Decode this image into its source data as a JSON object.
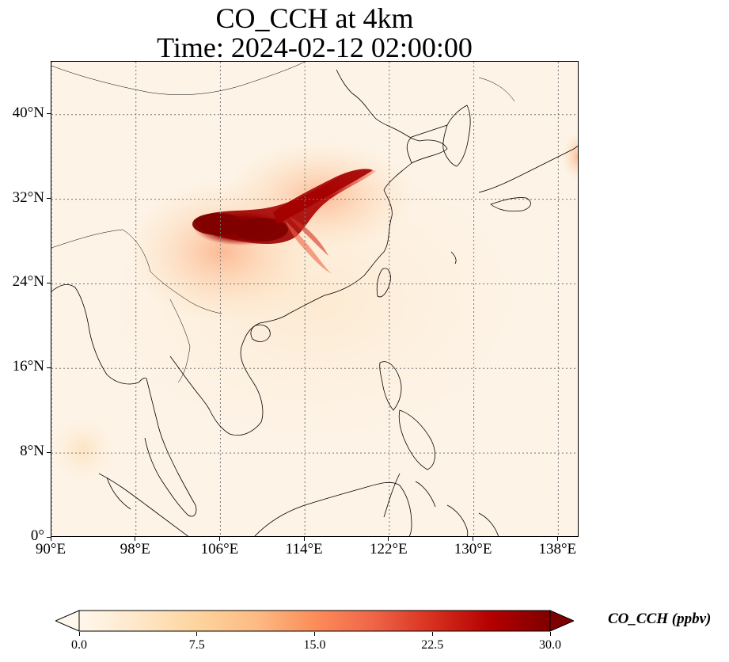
{
  "title_line1": "CO_CCH at 4km",
  "title_line2": "Time: 2024-02-12 02:00:00",
  "map": {
    "extent": {
      "lon": [
        90,
        140
      ],
      "lat": [
        0,
        45
      ]
    },
    "lat_ticks": [
      {
        "value": 0,
        "label": "0°"
      },
      {
        "value": 8,
        "label": "8°N"
      },
      {
        "value": 16,
        "label": "16°N"
      },
      {
        "value": 24,
        "label": "24°N"
      },
      {
        "value": 32,
        "label": "32°N"
      },
      {
        "value": 40,
        "label": "40°N"
      }
    ],
    "lon_ticks": [
      {
        "value": 90,
        "label": "90°E"
      },
      {
        "value": 98,
        "label": "98°E"
      },
      {
        "value": 106,
        "label": "106°E"
      },
      {
        "value": 114,
        "label": "114°E"
      },
      {
        "value": 122,
        "label": "122°E"
      },
      {
        "value": 130,
        "label": "130°E"
      },
      {
        "value": 138,
        "label": "138°E"
      }
    ],
    "gridlines": true,
    "background_color": "#fdf3e6",
    "coastline_color": "#000000"
  },
  "colorbar": {
    "title": "CO_CCH (ppbv)",
    "min": 0,
    "max": 30,
    "ticks": [
      {
        "value": 0,
        "label": "0.0"
      },
      {
        "value": 7.5,
        "label": "7.5"
      },
      {
        "value": 15,
        "label": "15.0"
      },
      {
        "value": 22.5,
        "label": "22.5"
      },
      {
        "value": 30,
        "label": "30.0"
      }
    ],
    "extend": "both",
    "colormap": [
      "#fff7ec",
      "#fee8c8",
      "#fdd49e",
      "#fdbb84",
      "#fc8d59",
      "#ef6548",
      "#d7301f",
      "#b30000",
      "#7f0000"
    ]
  }
}
